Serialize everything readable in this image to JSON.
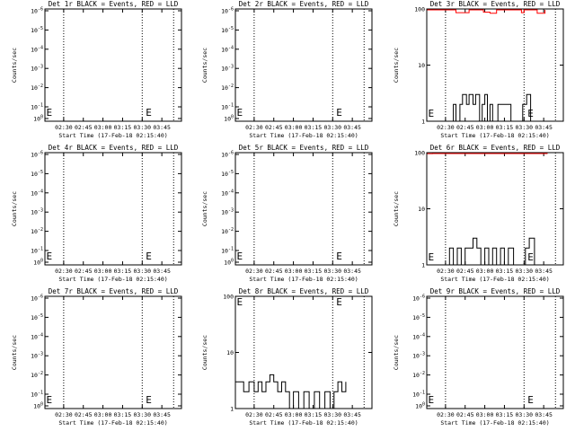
{
  "colors": {
    "events": "#000000",
    "lld": "#ff0000",
    "background": "#ffffff"
  },
  "chart_data": [
    {
      "type": "line",
      "title": "Det 1r BLACK = Events, RED = LLD",
      "xlabel": "Start Time (17-Feb-18 02:15:40)",
      "ylabel": "Counts/sec",
      "xlim": [
        "02:15:40",
        "04:00:00"
      ],
      "x_tick_labels": [
        "02:30",
        "02:45",
        "03:00",
        "03:15",
        "03:30",
        "03:45"
      ],
      "y_scale": "log",
      "ylim": [
        0.9,
        1.1
      ],
      "y_tick_labels": [
        "10^0",
        "10^-1",
        "10^-2",
        "10^-3",
        "10^-4",
        "10^-5",
        "10^-6"
      ],
      "dotted_verticals": [
        "02:30",
        "03:30",
        "03:54"
      ],
      "markers": [
        {
          "x": "02:16",
          "label": "E"
        },
        {
          "x": "03:32",
          "label": "E"
        }
      ],
      "series": []
    },
    {
      "type": "line",
      "title": "Det 2r BLACK = Events, RED = LLD",
      "xlabel": "Start Time (17-Feb-18 02:15:40)",
      "ylabel": "Counts/sec",
      "xlim": [
        "02:15:40",
        "04:00:00"
      ],
      "x_tick_labels": [
        "02:30",
        "02:45",
        "03:00",
        "03:15",
        "03:30",
        "03:45"
      ],
      "y_scale": "log",
      "ylim": [
        0.9,
        1.1
      ],
      "y_tick_labels": [
        "10^0",
        "10^-1",
        "10^-2",
        "10^-3",
        "10^-4",
        "10^-5",
        "10^-6"
      ],
      "dotted_verticals": [
        "02:30",
        "03:30",
        "03:54"
      ],
      "markers": [
        {
          "x": "02:16",
          "label": "E"
        },
        {
          "x": "03:32",
          "label": "E"
        }
      ],
      "series": []
    },
    {
      "type": "line",
      "title": "Det 3r BLACK = Events, RED = LLD",
      "xlabel": "Start Time (17-Feb-18 02:15:40)",
      "ylabel": "Counts/sec",
      "xlim": [
        "02:15:40",
        "04:00:00"
      ],
      "x_tick_labels": [
        "02:30",
        "02:45",
        "03:00",
        "03:15",
        "03:30",
        "03:45"
      ],
      "y_scale": "log",
      "ylim": [
        1,
        100
      ],
      "y_tick_labels": [
        "1",
        "10",
        "100"
      ],
      "dotted_verticals": [
        "02:30",
        "03:30",
        "03:54"
      ],
      "markers": [
        {
          "x": "02:16",
          "label": "E"
        },
        {
          "x": "03:32",
          "label": "E"
        }
      ],
      "series": [
        {
          "color": "#ff0000",
          "x": [
            "02:16",
            "02:24",
            "02:33",
            "02:38",
            "02:44",
            "02:48",
            "02:56",
            "02:59",
            "03:04",
            "03:09",
            "03:14",
            "03:22",
            "03:28",
            "03:30",
            "03:36",
            "03:40",
            "03:46"
          ],
          "y": [
            100,
            100,
            100,
            86,
            86,
            100,
            100,
            88,
            84,
            100,
            100,
            100,
            86,
            100,
            100,
            84,
            100
          ]
        },
        {
          "color": "#000000",
          "x": [
            "02:16",
            "02:33",
            "02:36",
            "02:38",
            "02:41",
            "02:43",
            "02:46",
            "02:48",
            "02:51",
            "02:53",
            "02:56",
            "02:58",
            "03:00",
            "03:02",
            "03:04",
            "03:06",
            "03:10",
            "03:14",
            "03:20",
            "03:26",
            "03:29",
            "03:32",
            "03:35",
            "03:40",
            "03:47"
          ],
          "y": [
            1,
            1,
            2,
            1,
            2,
            3,
            2,
            3,
            2,
            3,
            1,
            2,
            3,
            1,
            2,
            1,
            2,
            2,
            1,
            1,
            2,
            3,
            1,
            1,
            1
          ]
        }
      ]
    },
    {
      "type": "line",
      "title": "Det 4r BLACK = Events, RED = LLD",
      "xlabel": "Start Time (17-Feb-18 02:15:40)",
      "ylabel": "Counts/sec",
      "xlim": [
        "02:15:40",
        "04:00:00"
      ],
      "x_tick_labels": [
        "02:30",
        "02:45",
        "03:00",
        "03:15",
        "03:30",
        "03:45"
      ],
      "y_scale": "log",
      "ylim": [
        0.9,
        1.1
      ],
      "y_tick_labels": [
        "10^0",
        "10^-1",
        "10^-2",
        "10^-3",
        "10^-4",
        "10^-5",
        "10^-6"
      ],
      "dotted_verticals": [
        "02:30",
        "03:30",
        "03:54"
      ],
      "markers": [
        {
          "x": "02:16",
          "label": "E"
        },
        {
          "x": "03:32",
          "label": "E"
        }
      ],
      "series": []
    },
    {
      "type": "line",
      "title": "Det 5r BLACK = Events, RED = LLD",
      "xlabel": "Start Time (17-Feb-18 02:15:40)",
      "ylabel": "Counts/sec",
      "xlim": [
        "02:15:40",
        "04:00:00"
      ],
      "x_tick_labels": [
        "02:30",
        "02:45",
        "03:00",
        "03:15",
        "03:30",
        "03:45"
      ],
      "y_scale": "log",
      "ylim": [
        0.9,
        1.1
      ],
      "y_tick_labels": [
        "10^0",
        "10^-1",
        "10^-2",
        "10^-3",
        "10^-4",
        "10^-5",
        "10^-6"
      ],
      "dotted_verticals": [
        "02:30",
        "03:30",
        "03:54"
      ],
      "markers": [
        {
          "x": "02:16",
          "label": "E"
        },
        {
          "x": "03:32",
          "label": "E"
        }
      ],
      "series": []
    },
    {
      "type": "line",
      "title": "Det 6r BLACK = Events, RED = LLD",
      "xlabel": "Start Time (17-Feb-18 02:15:40)",
      "ylabel": "Counts/sec",
      "xlim": [
        "02:15:40",
        "04:00:00"
      ],
      "x_tick_labels": [
        "02:30",
        "02:45",
        "03:00",
        "03:15",
        "03:30",
        "03:45"
      ],
      "y_scale": "log",
      "ylim": [
        1,
        100
      ],
      "y_tick_labels": [
        "1",
        "10",
        "100"
      ],
      "dotted_verticals": [
        "02:30",
        "03:30",
        "03:54"
      ],
      "markers": [
        {
          "x": "02:16",
          "label": "E"
        },
        {
          "x": "03:32",
          "label": "E"
        }
      ],
      "series": [
        {
          "color": "#ff0000",
          "x": [
            "02:16",
            "02:20",
            "02:24",
            "02:30",
            "02:36",
            "02:44",
            "02:50",
            "03:00",
            "03:10",
            "03:20",
            "03:30",
            "03:40",
            "03:48"
          ],
          "y": [
            96,
            100,
            100,
            100,
            100,
            100,
            100,
            100,
            100,
            100,
            100,
            100,
            100
          ]
        },
        {
          "color": "#000000",
          "x": [
            "02:16",
            "02:30",
            "02:33",
            "02:36",
            "02:39",
            "02:42",
            "02:45",
            "02:48",
            "02:51",
            "02:54",
            "02:57",
            "03:00",
            "03:03",
            "03:06",
            "03:09",
            "03:12",
            "03:15",
            "03:18",
            "03:22",
            "03:28",
            "03:31",
            "03:34",
            "03:38",
            "03:46"
          ],
          "y": [
            1,
            1,
            2,
            1,
            2,
            1,
            2,
            2,
            3,
            2,
            1,
            2,
            1,
            2,
            1,
            2,
            1,
            2,
            1,
            1,
            2,
            3,
            1,
            1
          ]
        }
      ]
    },
    {
      "type": "line",
      "title": "Det 7r BLACK = Events, RED = LLD",
      "xlabel": "Start Time (17-Feb-18 02:15:40)",
      "ylabel": "Counts/sec",
      "xlim": [
        "02:15:40",
        "04:00:00"
      ],
      "x_tick_labels": [
        "02:30",
        "02:45",
        "03:00",
        "03:15",
        "03:30",
        "03:45"
      ],
      "y_scale": "log",
      "ylim": [
        0.9,
        1.1
      ],
      "y_tick_labels": [
        "10^0",
        "10^-1",
        "10^-2",
        "10^-3",
        "10^-4",
        "10^-5",
        "10^-6"
      ],
      "dotted_verticals": [
        "02:30",
        "03:30",
        "03:54"
      ],
      "markers": [
        {
          "x": "02:16",
          "label": "E"
        },
        {
          "x": "03:32",
          "label": "E"
        }
      ],
      "series": []
    },
    {
      "type": "line",
      "title": "Det 8r BLACK = Events, RED = LLD",
      "xlabel": "Start Time (17-Feb-18 02:15:40)",
      "ylabel": "Counts/sec",
      "xlim": [
        "02:15:40",
        "04:00:00"
      ],
      "x_tick_labels": [
        "02:30",
        "02:45",
        "03:00",
        "03:15",
        "03:30",
        "03:45"
      ],
      "y_scale": "log",
      "ylim": [
        1,
        100
      ],
      "y_tick_labels": [
        "1",
        "10",
        "100"
      ],
      "dotted_verticals": [
        "02:30",
        "03:30",
        "03:54"
      ],
      "markers": [
        {
          "x": "02:16",
          "label": "E"
        },
        {
          "x": "03:32",
          "label": "E"
        }
      ],
      "series": [
        {
          "color": "#000000",
          "x": [
            "02:16",
            "02:22",
            "02:26",
            "02:30",
            "02:33",
            "02:36",
            "02:39",
            "02:42",
            "02:45",
            "02:48",
            "02:51",
            "02:54",
            "02:57",
            "03:00",
            "03:04",
            "03:08",
            "03:12",
            "03:16",
            "03:20",
            "03:24",
            "03:28",
            "03:31",
            "03:34",
            "03:37",
            "03:40"
          ],
          "y": [
            3,
            2,
            3,
            2,
            3,
            2,
            3,
            4,
            3,
            2,
            3,
            2,
            1,
            2,
            1,
            2,
            1,
            2,
            1,
            2,
            1,
            2,
            3,
            2,
            3
          ]
        }
      ]
    },
    {
      "type": "line",
      "title": "Det 9r BLACK = Events, RED = LLD",
      "xlabel": "Start Time (17-Feb-18 02:15:40)",
      "ylabel": "Counts/sec",
      "xlim": [
        "02:15:40",
        "04:00:00"
      ],
      "x_tick_labels": [
        "02:30",
        "02:45",
        "03:00",
        "03:15",
        "03:30",
        "03:45"
      ],
      "y_scale": "log",
      "ylim": [
        0.9,
        1.1
      ],
      "y_tick_labels": [
        "10^0",
        "10^-1",
        "10^-2",
        "10^-3",
        "10^-4",
        "10^-5",
        "10^-6"
      ],
      "dotted_verticals": [
        "02:30",
        "03:30",
        "03:54"
      ],
      "markers": [
        {
          "x": "02:16",
          "label": "E"
        },
        {
          "x": "03:32",
          "label": "E"
        }
      ],
      "series": []
    }
  ]
}
